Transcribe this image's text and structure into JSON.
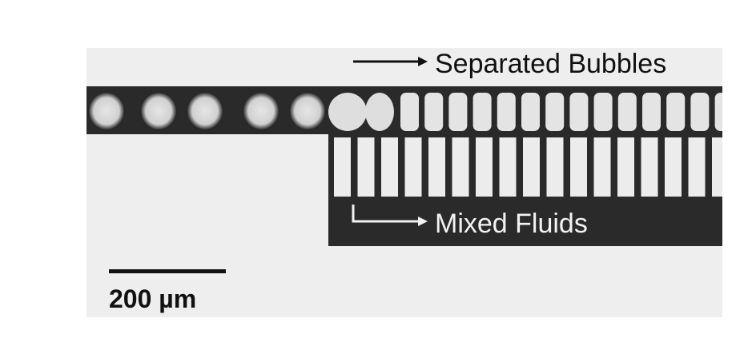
{
  "labels": {
    "separated": "Separated Bubbles",
    "mixed": "Mixed Fluids",
    "scale": "200 µm"
  },
  "colors": {
    "channel": "#2a2a2a",
    "background": "#eeeeee",
    "bubble": "#d9d9d9",
    "slot": "#ececec"
  }
}
